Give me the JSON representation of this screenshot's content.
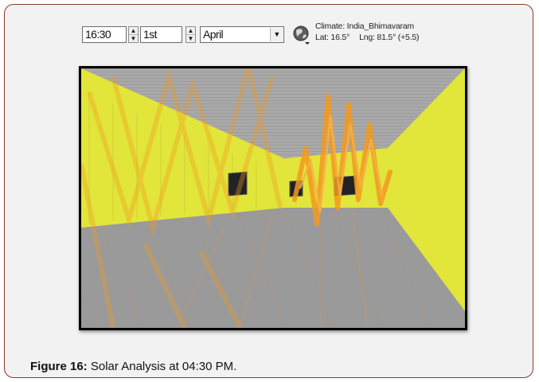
{
  "toolbar": {
    "time_value": "16:30",
    "day_value": "1st",
    "month_value": "April",
    "spinner_up_glyph": "▲",
    "spinner_down_glyph": "▼",
    "dropdown_glyph": "▼",
    "location_icon": "globe-icon",
    "climate_text": "Climate: India_Bhimavaram",
    "lat_text": "Lat: 16.5°",
    "lng_text": "Lng: 81.5° (+5.5)"
  },
  "scene": {
    "wall_color": "#e2e53a",
    "floor_color": "#9a9a9a",
    "ceiling_color": "#a9a9a9",
    "sun_path_color": "#f29a1f",
    "window_color": "#222222"
  },
  "caption": {
    "label": "Figure 16:",
    "text": "Solar Analysis at 04:30 PM."
  },
  "frame_color": "#8a3a2c"
}
